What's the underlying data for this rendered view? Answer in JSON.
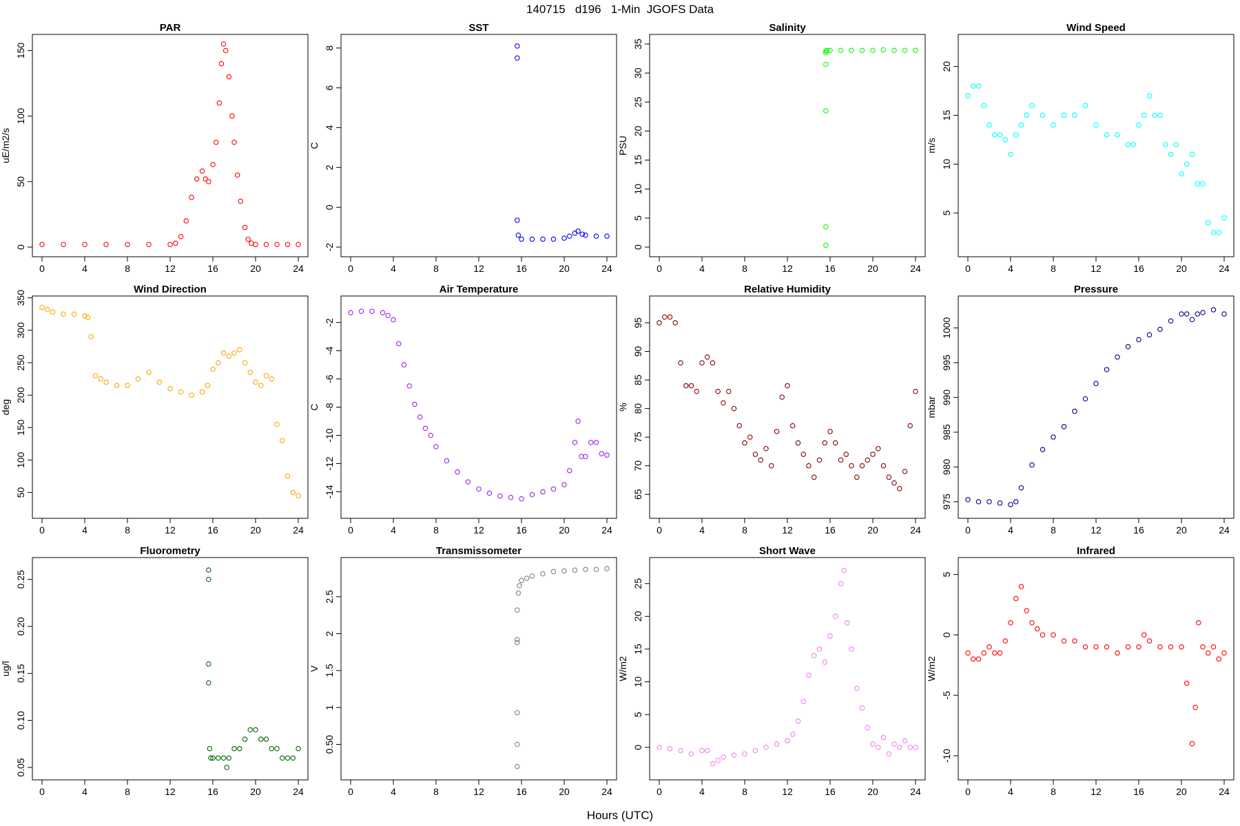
{
  "figure": {
    "title": "140715   d196   1-Min  JGOFS Data",
    "xlabel": "Hours (UTC)"
  },
  "chart_data": [
    {
      "type": "scatter",
      "title": "PAR",
      "ylabel": "uE/m2/s",
      "color": "#ff0000",
      "xlim": [
        0,
        24
      ],
      "ylim": [
        0,
        155
      ],
      "xticks": [
        0,
        4,
        8,
        12,
        16,
        20,
        24
      ],
      "yticks": [
        0,
        50,
        100,
        150
      ],
      "x": [
        0,
        2,
        4,
        6,
        8,
        10,
        12,
        12.5,
        13,
        13.5,
        14,
        14.5,
        15,
        15.3,
        15.6,
        16,
        16.3,
        16.6,
        16.8,
        17,
        17.2,
        17.5,
        17.8,
        18,
        18.3,
        18.6,
        19,
        19.3,
        19.6,
        20,
        21,
        22,
        23,
        24
      ],
      "y": [
        2,
        2,
        2,
        2,
        2,
        2,
        2,
        3,
        8,
        20,
        38,
        52,
        58,
        52,
        50,
        63,
        80,
        110,
        140,
        155,
        150,
        130,
        100,
        80,
        55,
        35,
        15,
        6,
        3,
        2,
        2,
        2,
        2,
        2
      ]
    },
    {
      "type": "scatter",
      "title": "SST",
      "ylabel": "C",
      "color": "#0000ff",
      "xlim": [
        0,
        24
      ],
      "ylim": [
        -2,
        8.2
      ],
      "xticks": [
        0,
        4,
        8,
        12,
        16,
        20,
        24
      ],
      "yticks": [
        -2,
        0,
        2,
        4,
        6,
        8
      ],
      "x": [
        15.6,
        15.6,
        15.6,
        15.7,
        16,
        17,
        18,
        19,
        20,
        20.5,
        21,
        21.3,
        21.7,
        22,
        23,
        24
      ],
      "y": [
        8.1,
        7.5,
        -0.65,
        -1.4,
        -1.6,
        -1.6,
        -1.6,
        -1.6,
        -1.55,
        -1.45,
        -1.3,
        -1.2,
        -1.35,
        -1.4,
        -1.45,
        -1.45
      ]
    },
    {
      "type": "scatter",
      "title": "Salinity",
      "ylabel": "PSU",
      "color": "#00ff00",
      "xlim": [
        0,
        24
      ],
      "ylim": [
        0,
        35
      ],
      "xticks": [
        0,
        4,
        8,
        12,
        16,
        20,
        24
      ],
      "yticks": [
        0,
        5,
        10,
        15,
        20,
        25,
        30,
        35
      ],
      "x": [
        15.6,
        15.6,
        15.6,
        15.6,
        15.6,
        15.6,
        15.7,
        16,
        17,
        18,
        19,
        20,
        21,
        22,
        23,
        24
      ],
      "y": [
        0.3,
        3.5,
        23.5,
        31.5,
        33.5,
        33.8,
        33.9,
        33.9,
        33.9,
        33.9,
        33.9,
        33.9,
        34,
        33.9,
        33.9,
        33.9
      ]
    },
    {
      "type": "scatter",
      "title": "Wind Speed",
      "ylabel": "m/s",
      "color": "#00ffff",
      "xlim": [
        0,
        24
      ],
      "ylim": [
        1.5,
        22.3
      ],
      "xticks": [
        0,
        4,
        8,
        12,
        16,
        20,
        24
      ],
      "yticks": [
        5,
        10,
        15,
        20
      ],
      "x": [
        0,
        0.5,
        1,
        1.5,
        2,
        2.5,
        3,
        3.5,
        4,
        4.5,
        5,
        5.5,
        6,
        7,
        8,
        9,
        10,
        11,
        12,
        13,
        14,
        15,
        15.5,
        16,
        16.5,
        17,
        17.5,
        18,
        18.5,
        19,
        19.5,
        20,
        20.5,
        21,
        21.5,
        22,
        22.5,
        23,
        23.5,
        24
      ],
      "y": [
        17,
        18,
        18,
        16,
        14,
        13,
        13,
        12.5,
        11,
        13,
        14,
        15,
        16,
        15,
        14,
        15,
        15,
        16,
        14,
        13,
        13,
        12,
        12,
        14,
        15,
        17,
        15,
        15,
        12,
        11,
        12,
        9,
        10,
        11,
        8,
        8,
        4,
        3,
        3,
        4.5
      ]
    },
    {
      "type": "scatter",
      "title": "Wind Direction",
      "ylabel": "deg",
      "color": "#ffa500",
      "xlim": [
        0,
        24
      ],
      "ylim": [
        25,
        338
      ],
      "xticks": [
        0,
        4,
        8,
        12,
        16,
        20,
        24
      ],
      "yticks": [
        50,
        100,
        150,
        200,
        250,
        300,
        350
      ],
      "x": [
        0,
        0.5,
        1,
        2,
        3,
        4,
        4.3,
        4.6,
        5,
        5.5,
        6,
        7,
        8,
        9,
        10,
        11,
        12,
        13,
        14,
        15,
        15.5,
        16,
        16.5,
        17,
        17.5,
        18,
        18.5,
        19,
        19.5,
        20,
        20.5,
        21,
        21.5,
        22,
        22.5,
        23,
        23.5,
        24
      ],
      "y": [
        335,
        332,
        328,
        325,
        325,
        322,
        320,
        290,
        230,
        225,
        220,
        215,
        215,
        225,
        235,
        220,
        210,
        205,
        200,
        205,
        215,
        240,
        250,
        265,
        260,
        265,
        270,
        250,
        235,
        220,
        215,
        230,
        225,
        155,
        130,
        75,
        50,
        45
      ]
    },
    {
      "type": "scatter",
      "title": "Air Temperature",
      "ylabel": "C",
      "color": "#a020f0",
      "xlim": [
        0,
        24
      ],
      "ylim": [
        -15.2,
        -0.8
      ],
      "xticks": [
        0,
        4,
        8,
        12,
        16,
        20,
        24
      ],
      "yticks": [
        -14,
        -12,
        -10,
        -8,
        -6,
        -4,
        -2
      ],
      "x": [
        0,
        1,
        2,
        3,
        3.5,
        4,
        4.5,
        5,
        5.5,
        6,
        6.5,
        7,
        7.5,
        8,
        9,
        10,
        11,
        12,
        13,
        14,
        15,
        16,
        17,
        18,
        19,
        20,
        20.5,
        21,
        21.3,
        21.6,
        22,
        22.5,
        23,
        23.5,
        24
      ],
      "y": [
        -1.3,
        -1.2,
        -1.2,
        -1.3,
        -1.5,
        -1.8,
        -3.5,
        -5,
        -6.5,
        -7.8,
        -8.7,
        -9.5,
        -10,
        -10.8,
        -11.8,
        -12.6,
        -13.3,
        -13.8,
        -14.1,
        -14.3,
        -14.4,
        -14.5,
        -14.2,
        -14,
        -13.8,
        -13.5,
        -12.5,
        -10.5,
        -9,
        -11.5,
        -11.5,
        -10.5,
        -10.5,
        -11.3,
        -11.4
      ]
    },
    {
      "type": "scatter",
      "title": "Relative Humidity",
      "ylabel": "%",
      "color": "#8b0000",
      "xlim": [
        0,
        24
      ],
      "ylim": [
        62.5,
        98
      ],
      "xticks": [
        0,
        4,
        8,
        12,
        16,
        20,
        24
      ],
      "yticks": [
        65,
        70,
        75,
        80,
        85,
        90,
        95
      ],
      "x": [
        0,
        0.5,
        1,
        1.5,
        2,
        2.5,
        3,
        3.5,
        4,
        4.5,
        5,
        5.5,
        6,
        6.5,
        7,
        7.5,
        8,
        8.5,
        9,
        9.5,
        10,
        10.5,
        11,
        11.5,
        12,
        12.5,
        13,
        13.5,
        14,
        14.5,
        15,
        15.5,
        16,
        16.5,
        17,
        17.5,
        18,
        18.5,
        19,
        19.5,
        20,
        20.5,
        21,
        21.5,
        22,
        22.5,
        23,
        23.5,
        24
      ],
      "y": [
        95,
        96,
        96,
        95,
        88,
        84,
        84,
        83,
        88,
        89,
        88,
        83,
        81,
        83,
        80,
        77,
        74,
        75,
        72,
        71,
        73,
        70,
        76,
        82,
        84,
        77,
        74,
        72,
        70,
        68,
        71,
        74,
        76,
        74,
        71,
        72,
        70,
        68,
        70,
        71,
        72,
        73,
        70,
        68,
        67,
        66,
        69,
        77,
        83
      ]
    },
    {
      "type": "scatter",
      "title": "Pressure",
      "ylabel": "mbar",
      "color": "#000080",
      "xlim": [
        0,
        24
      ],
      "ylim": [
        974,
        1003.2
      ],
      "xticks": [
        0,
        4,
        8,
        12,
        16,
        20,
        24
      ],
      "yticks": [
        975,
        980,
        985,
        990,
        995,
        1000
      ],
      "x": [
        0,
        1,
        2,
        3,
        4,
        4.5,
        5,
        6,
        7,
        8,
        9,
        10,
        11,
        12,
        13,
        14,
        15,
        16,
        17,
        18,
        19,
        20,
        20.5,
        21,
        21.5,
        22,
        23,
        24
      ],
      "y": [
        975.3,
        975,
        975,
        974.8,
        974.6,
        975,
        977,
        980.3,
        982.5,
        984.3,
        985.8,
        988,
        989.8,
        992,
        994,
        995.8,
        997.3,
        998.3,
        999,
        999.8,
        1001,
        1002,
        1002,
        1001.2,
        1002,
        1002.2,
        1002.6,
        1002
      ]
    },
    {
      "type": "scatter",
      "title": "Fluorometry",
      "ylabel": "ug/l",
      "color": "#006400",
      "xlim": [
        0,
        24
      ],
      "ylim": [
        0.047,
        0.263
      ],
      "xticks": [
        0,
        4,
        8,
        12,
        16,
        20,
        24
      ],
      "yticks": [
        0.05,
        0.1,
        0.15,
        0.2,
        0.25
      ],
      "x": [
        15.6,
        15.6,
        15.6,
        15.6,
        15.7,
        15.8,
        16,
        16.5,
        17,
        17.3,
        17.5,
        18,
        18.5,
        19,
        19.5,
        20,
        20.5,
        21,
        21.5,
        22,
        22.5,
        23,
        23.5,
        24
      ],
      "y": [
        0.26,
        0.25,
        0.16,
        0.14,
        0.07,
        0.06,
        0.06,
        0.06,
        0.06,
        0.05,
        0.06,
        0.07,
        0.07,
        0.08,
        0.09,
        0.09,
        0.08,
        0.08,
        0.07,
        0.07,
        0.06,
        0.06,
        0.06,
        0.07
      ]
    },
    {
      "type": "scatter",
      "title": "Transmissometer",
      "ylabel": "V",
      "color": "#808080",
      "xlim": [
        0,
        24
      ],
      "ylim": [
        0.15,
        2.9
      ],
      "xticks": [
        0,
        4,
        8,
        12,
        16,
        20,
        24
      ],
      "yticks": [
        0.5,
        1.0,
        1.5,
        2.0,
        2.5
      ],
      "x": [
        15.6,
        15.6,
        15.6,
        15.6,
        15.6,
        15.6,
        15.7,
        15.8,
        16,
        16.5,
        17,
        18,
        19,
        20,
        21,
        22,
        23,
        24
      ],
      "y": [
        0.2,
        0.5,
        0.93,
        1.88,
        1.92,
        2.32,
        2.55,
        2.65,
        2.72,
        2.75,
        2.78,
        2.81,
        2.84,
        2.85,
        2.86,
        2.87,
        2.87,
        2.88
      ]
    },
    {
      "type": "scatter",
      "title": "Short Wave",
      "ylabel": "W/m2",
      "color": "#ee82ee",
      "xlim": [
        0,
        24
      ],
      "ylim": [
        -3.5,
        27.5
      ],
      "xticks": [
        0,
        4,
        8,
        12,
        16,
        20,
        24
      ],
      "yticks": [
        0,
        5,
        10,
        15,
        20,
        25
      ],
      "x": [
        0,
        1,
        2,
        3,
        4,
        4.5,
        5,
        5.5,
        6,
        7,
        8,
        9,
        10,
        11,
        12,
        12.5,
        13,
        13.5,
        14,
        14.5,
        15,
        15.5,
        16,
        16.5,
        17,
        17.3,
        17.6,
        18,
        18.5,
        19,
        19.5,
        20,
        20.5,
        21,
        21.5,
        22,
        22.5,
        23,
        23.5,
        24
      ],
      "y": [
        0,
        -0.2,
        -0.5,
        -1,
        -0.5,
        -0.5,
        -2.5,
        -2,
        -1.5,
        -1.2,
        -1,
        -0.5,
        0,
        0.5,
        1,
        2,
        4,
        7,
        11,
        14,
        15,
        13,
        17,
        20,
        25,
        27,
        19,
        15,
        9,
        6,
        3,
        0.5,
        0,
        1.5,
        -1,
        0.5,
        0,
        1,
        0,
        0
      ]
    },
    {
      "type": "scatter",
      "title": "Infrared",
      "ylabel": "W/m2",
      "color": "#ff0000",
      "xlim": [
        0,
        24
      ],
      "ylim": [
        -11.2,
        5.6
      ],
      "xticks": [
        0,
        4,
        8,
        12,
        16,
        20,
        24
      ],
      "yticks": [
        -10,
        -5,
        0,
        5
      ],
      "x": [
        0,
        0.5,
        1,
        1.5,
        2,
        2.5,
        3,
        3.5,
        4,
        4.5,
        5,
        5.5,
        6,
        6.5,
        7,
        8,
        9,
        10,
        11,
        12,
        13,
        14,
        15,
        16,
        16.5,
        17,
        18,
        19,
        20,
        20.5,
        21,
        21.3,
        21.6,
        22,
        22.5,
        23,
        23.5,
        24
      ],
      "y": [
        -1.5,
        -2,
        -2,
        -1.5,
        -1,
        -1.5,
        -1.5,
        -0.5,
        1,
        3,
        4,
        2,
        1,
        0.5,
        0,
        0,
        -0.5,
        -0.5,
        -1,
        -1,
        -1,
        -1.5,
        -1,
        -1,
        0,
        -0.5,
        -1,
        -1,
        -1,
        -4,
        -9,
        -6,
        1,
        -1,
        -1.5,
        -1,
        -2,
        -1.5
      ]
    }
  ]
}
